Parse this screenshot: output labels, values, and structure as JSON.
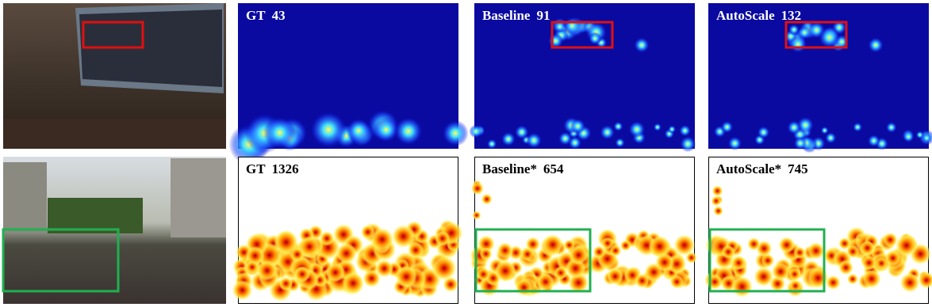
{
  "rows": [
    {
      "panels": [
        {
          "name": "GT",
          "count": 43
        },
        {
          "name": "Baseline",
          "count": 91
        },
        {
          "name": "AutoScale",
          "count": 132
        }
      ]
    },
    {
      "panels": [
        {
          "name": "GT",
          "count": 1326
        },
        {
          "name": "Baseline*",
          "count": 654
        },
        {
          "name": "AutoScale*",
          "count": 745
        }
      ]
    }
  ]
}
